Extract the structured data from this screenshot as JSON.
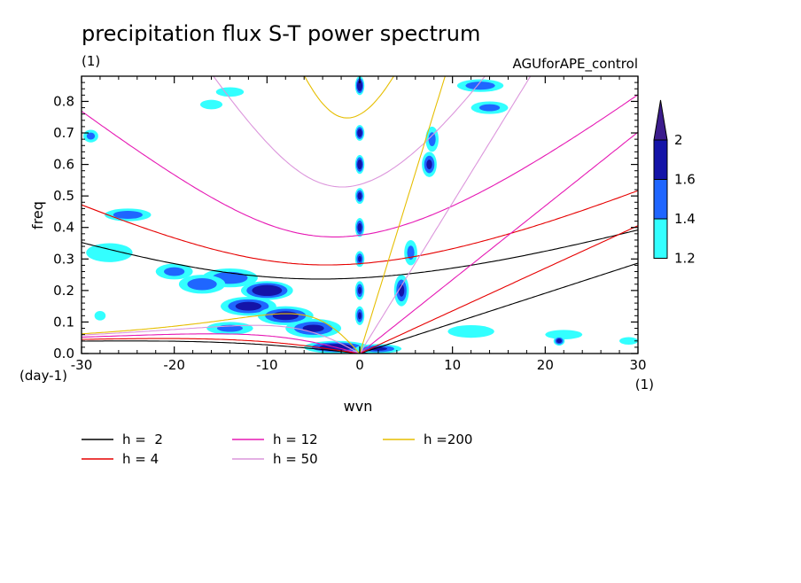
{
  "chart_data": {
    "type": "heatmap",
    "title": "precipitation flux S-T power spectrum",
    "subtitle": "(1)",
    "run_label": "AGUforAPE_control",
    "xlabel": "wvn",
    "ylabel": "freq",
    "x_unit_label": "(1)",
    "y_unit_label": "(day-1)",
    "xlim": [
      -30,
      30
    ],
    "ylim": [
      0,
      0.88
    ],
    "x_ticks": [
      -30,
      -20,
      -10,
      0,
      10,
      20,
      30
    ],
    "x_tick_labels": [
      "-30",
      "-20",
      "-10",
      "0",
      "10",
      "20",
      "30"
    ],
    "y_ticks": [
      0,
      0.1,
      0.2,
      0.3,
      0.4,
      0.5,
      0.6,
      0.7,
      0.8
    ],
    "y_tick_labels": [
      "0.0",
      "0.1",
      "0.2",
      "0.3",
      "0.4",
      "0.5",
      "0.6",
      "0.7",
      "0.8"
    ],
    "colorbar": {
      "levels": [
        1.2,
        1.4,
        1.6,
        2
      ],
      "level_labels": [
        "1.2",
        "1.4",
        "1.6",
        "2"
      ],
      "colors": [
        "#33ffff",
        "#1f66ff",
        "#1414a8",
        "#3c1c8c"
      ],
      "extend": "max"
    },
    "dispersion_curves": [
      {
        "name": "h =  2",
        "h": 2,
        "color": "#000000"
      },
      {
        "name": "h = 4",
        "h": 4,
        "color": "#e60000"
      },
      {
        "name": "h = 12",
        "h": 12,
        "color": "#e619b4"
      },
      {
        "name": "h = 50",
        "h": 50,
        "color": "#dc96dc"
      },
      {
        "name": "h =200",
        "h": 200,
        "color": "#e6be00"
      }
    ],
    "power_blobs": [
      {
        "x": 0,
        "y": 0.01,
        "v": 1.9,
        "rx": 3.6,
        "ry": 0.018
      },
      {
        "x": -2.5,
        "y": 0.02,
        "v": 1.8,
        "rx": 3.5,
        "ry": 0.02
      },
      {
        "x": 2,
        "y": 0.015,
        "v": 1.6,
        "rx": 2.5,
        "ry": 0.015
      },
      {
        "x": -5,
        "y": 0.08,
        "v": 1.6,
        "rx": 3,
        "ry": 0.03
      },
      {
        "x": -10,
        "y": 0.2,
        "v": 1.9,
        "rx": 2.8,
        "ry": 0.03
      },
      {
        "x": -12,
        "y": 0.15,
        "v": 1.7,
        "rx": 3,
        "ry": 0.03
      },
      {
        "x": -8,
        "y": 0.12,
        "v": 1.7,
        "rx": 3,
        "ry": 0.03
      },
      {
        "x": -14,
        "y": 0.24,
        "v": 1.5,
        "rx": 3,
        "ry": 0.03
      },
      {
        "x": -17,
        "y": 0.22,
        "v": 1.5,
        "rx": 2.5,
        "ry": 0.03
      },
      {
        "x": -20,
        "y": 0.26,
        "v": 1.4,
        "rx": 2,
        "ry": 0.025
      },
      {
        "x": -27,
        "y": 0.32,
        "v": 1.3,
        "rx": 2.5,
        "ry": 0.03
      },
      {
        "x": -25,
        "y": 0.44,
        "v": 1.5,
        "rx": 2.5,
        "ry": 0.02
      },
      {
        "x": -14,
        "y": 0.08,
        "v": 1.4,
        "rx": 2.5,
        "ry": 0.02
      },
      {
        "x": 0,
        "y": 0.85,
        "v": 1.9,
        "rx": 0.5,
        "ry": 0.03
      },
      {
        "x": 0,
        "y": 0.7,
        "v": 1.8,
        "rx": 0.5,
        "ry": 0.025
      },
      {
        "x": 0,
        "y": 0.6,
        "v": 1.8,
        "rx": 0.5,
        "ry": 0.03
      },
      {
        "x": 0,
        "y": 0.5,
        "v": 1.7,
        "rx": 0.5,
        "ry": 0.025
      },
      {
        "x": 0,
        "y": 0.4,
        "v": 1.7,
        "rx": 0.5,
        "ry": 0.03
      },
      {
        "x": 0,
        "y": 0.3,
        "v": 1.6,
        "rx": 0.5,
        "ry": 0.025
      },
      {
        "x": 0,
        "y": 0.2,
        "v": 1.6,
        "rx": 0.5,
        "ry": 0.03
      },
      {
        "x": 0,
        "y": 0.12,
        "v": 1.6,
        "rx": 0.5,
        "ry": 0.03
      },
      {
        "x": 4.5,
        "y": 0.2,
        "v": 1.6,
        "rx": 0.8,
        "ry": 0.05
      },
      {
        "x": 5.5,
        "y": 0.32,
        "v": 1.4,
        "rx": 0.7,
        "ry": 0.04
      },
      {
        "x": 7.5,
        "y": 0.6,
        "v": 1.6,
        "rx": 0.8,
        "ry": 0.04
      },
      {
        "x": 7.8,
        "y": 0.68,
        "v": 1.4,
        "rx": 0.7,
        "ry": 0.04
      },
      {
        "x": 13,
        "y": 0.85,
        "v": 1.5,
        "rx": 2.5,
        "ry": 0.02
      },
      {
        "x": 14,
        "y": 0.78,
        "v": 1.4,
        "rx": 2,
        "ry": 0.02
      },
      {
        "x": 22,
        "y": 0.06,
        "v": 1.3,
        "rx": 2,
        "ry": 0.015
      },
      {
        "x": 21.5,
        "y": 0.04,
        "v": 1.7,
        "rx": 0.6,
        "ry": 0.015
      },
      {
        "x": 12,
        "y": 0.07,
        "v": 1.3,
        "rx": 2.5,
        "ry": 0.02
      },
      {
        "x": -16,
        "y": 0.79,
        "v": 1.3,
        "rx": 1.2,
        "ry": 0.015
      },
      {
        "x": -14,
        "y": 0.83,
        "v": 1.3,
        "rx": 1.5,
        "ry": 0.015
      },
      {
        "x": -29,
        "y": 0.69,
        "v": 1.4,
        "rx": 0.8,
        "ry": 0.02
      },
      {
        "x": -28,
        "y": 0.12,
        "v": 1.3,
        "rx": 0.6,
        "ry": 0.015
      },
      {
        "x": 29,
        "y": 0.04,
        "v": 1.3,
        "rx": 1,
        "ry": 0.012
      }
    ]
  }
}
